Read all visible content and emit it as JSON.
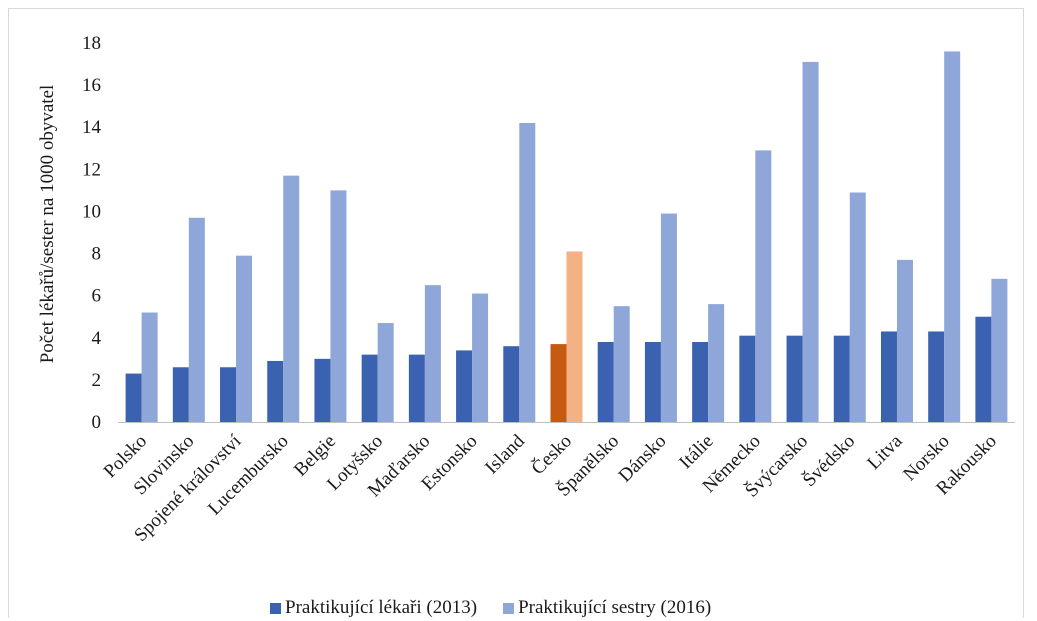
{
  "chart_data": {
    "type": "bar",
    "ylabel": "Počet lékařů/sester na 1000 obyvatel",
    "ylim": [
      0,
      18
    ],
    "yticks": [
      0,
      2,
      4,
      6,
      8,
      10,
      12,
      14,
      16,
      18
    ],
    "grid": false,
    "legend_position": "bottom",
    "categories": [
      "Polsko",
      "Slovinsko",
      "Spojené království",
      "Lucembursko",
      "Belgie",
      "Lotyšsko",
      "Maďarsko",
      "Estonsko",
      "Island",
      "Česko",
      "Španělsko",
      "Dánsko",
      "Itálie",
      "Německo",
      "Švýcarsko",
      "Švédsko",
      "Litva",
      "Norsko",
      "Rakousko"
    ],
    "highlight_category": "Česko",
    "series": [
      {
        "name": "Praktikující lékaři (2013)",
        "color": "#3b62b0",
        "highlight_color": "#c55a11",
        "values": [
          2.3,
          2.6,
          2.6,
          2.9,
          3.0,
          3.2,
          3.2,
          3.4,
          3.6,
          3.7,
          3.8,
          3.8,
          3.8,
          4.1,
          4.1,
          4.1,
          4.3,
          4.3,
          5.0
        ]
      },
      {
        "name": "Praktikující sestry (2016)",
        "color": "#8ea6d8",
        "highlight_color": "#f4b183",
        "values": [
          5.2,
          9.7,
          7.9,
          11.7,
          11.0,
          4.7,
          6.5,
          6.1,
          14.2,
          8.1,
          5.5,
          9.9,
          5.6,
          12.9,
          17.1,
          10.9,
          7.7,
          17.6,
          6.8
        ]
      }
    ]
  }
}
